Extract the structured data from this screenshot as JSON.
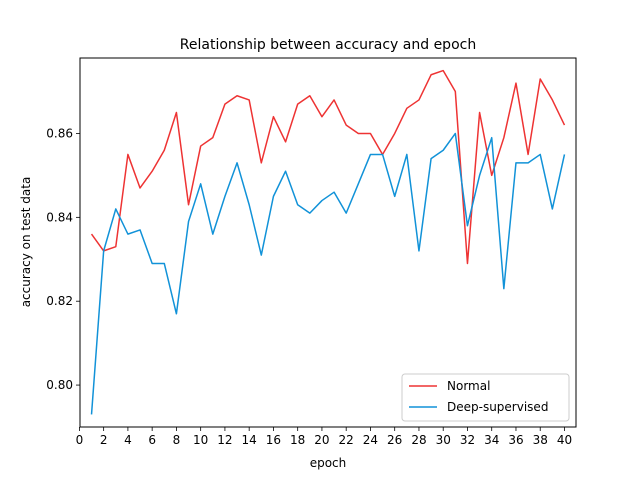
{
  "chart_data": {
    "type": "line",
    "title": "Relationship between accuracy and epoch",
    "xlabel": "epoch",
    "ylabel": "accuracy on test data",
    "xlim": [
      0.05,
      40.95
    ],
    "ylim": [
      0.79,
      0.878
    ],
    "xticks": [
      0,
      2,
      4,
      6,
      8,
      10,
      12,
      14,
      16,
      18,
      20,
      22,
      24,
      26,
      28,
      30,
      32,
      34,
      36,
      38,
      40
    ],
    "yticks": [
      0.8,
      0.82,
      0.84,
      0.86
    ],
    "ytick_labels": [
      "0.80",
      "0.82",
      "0.84",
      "0.86"
    ],
    "legend_position": "lower-right",
    "grid": false,
    "x": [
      1,
      2,
      3,
      4,
      5,
      6,
      7,
      8,
      9,
      10,
      11,
      12,
      13,
      14,
      15,
      16,
      17,
      18,
      19,
      20,
      21,
      22,
      23,
      24,
      25,
      26,
      27,
      28,
      29,
      30,
      31,
      32,
      33,
      34,
      35,
      36,
      37,
      38,
      39,
      40
    ],
    "series": [
      {
        "name": "Normal",
        "color": "#ee3333",
        "values": [
          0.836,
          0.832,
          0.833,
          0.855,
          0.847,
          0.851,
          0.856,
          0.865,
          0.843,
          0.857,
          0.859,
          0.867,
          0.869,
          0.868,
          0.853,
          0.864,
          0.858,
          0.867,
          0.869,
          0.864,
          0.868,
          0.862,
          0.86,
          0.86,
          0.855,
          0.86,
          0.866,
          0.868,
          0.874,
          0.875,
          0.87,
          0.829,
          0.865,
          0.85,
          0.859,
          0.872,
          0.855,
          0.873,
          0.868,
          0.862
        ]
      },
      {
        "name": "Deep-supervised",
        "color": "#1192d8",
        "values": [
          0.793,
          0.832,
          0.842,
          0.836,
          0.837,
          0.829,
          0.829,
          0.817,
          0.839,
          0.848,
          0.836,
          0.845,
          0.853,
          0.843,
          0.831,
          0.845,
          0.851,
          0.843,
          0.841,
          0.844,
          0.846,
          0.841,
          0.848,
          0.855,
          0.855,
          0.845,
          0.855,
          0.832,
          0.854,
          0.856,
          0.86,
          0.838,
          0.85,
          0.859,
          0.823,
          0.853,
          0.853,
          0.855,
          0.842,
          0.855
        ]
      }
    ]
  }
}
